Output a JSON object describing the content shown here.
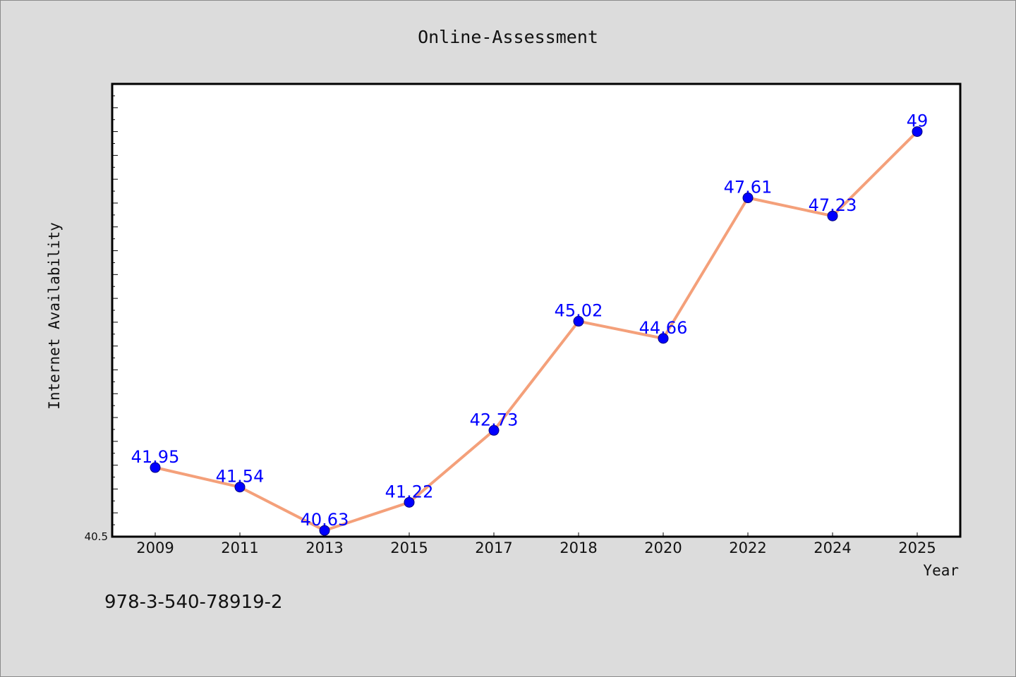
{
  "chart_data": {
    "type": "line",
    "title": "Online-Assessment",
    "xlabel": "Year",
    "ylabel": "Internet Availability",
    "categories": [
      "2009",
      "2011",
      "2013",
      "2015",
      "2017",
      "2018",
      "2020",
      "2022",
      "2024",
      "2025"
    ],
    "series": [
      {
        "values": [
          41.95,
          41.54,
          40.63,
          41.22,
          42.73,
          45.02,
          44.66,
          47.61,
          47.23,
          49
        ],
        "labels": [
          "41.95",
          "41.54",
          "40.63",
          "41.22",
          "42.73",
          "45.02",
          "44.66",
          "47.61",
          "47.23",
          "49"
        ]
      }
    ],
    "ylim": [
      40.5,
      50
    ],
    "y_min_label": "40.5",
    "grid": false,
    "colors": {
      "line": "#f4a07a",
      "marker": "#0000ff",
      "marker_edge": "#00007a",
      "label": "#0000ff"
    }
  },
  "footer": {
    "isbn": "978-3-540-78919-2"
  }
}
